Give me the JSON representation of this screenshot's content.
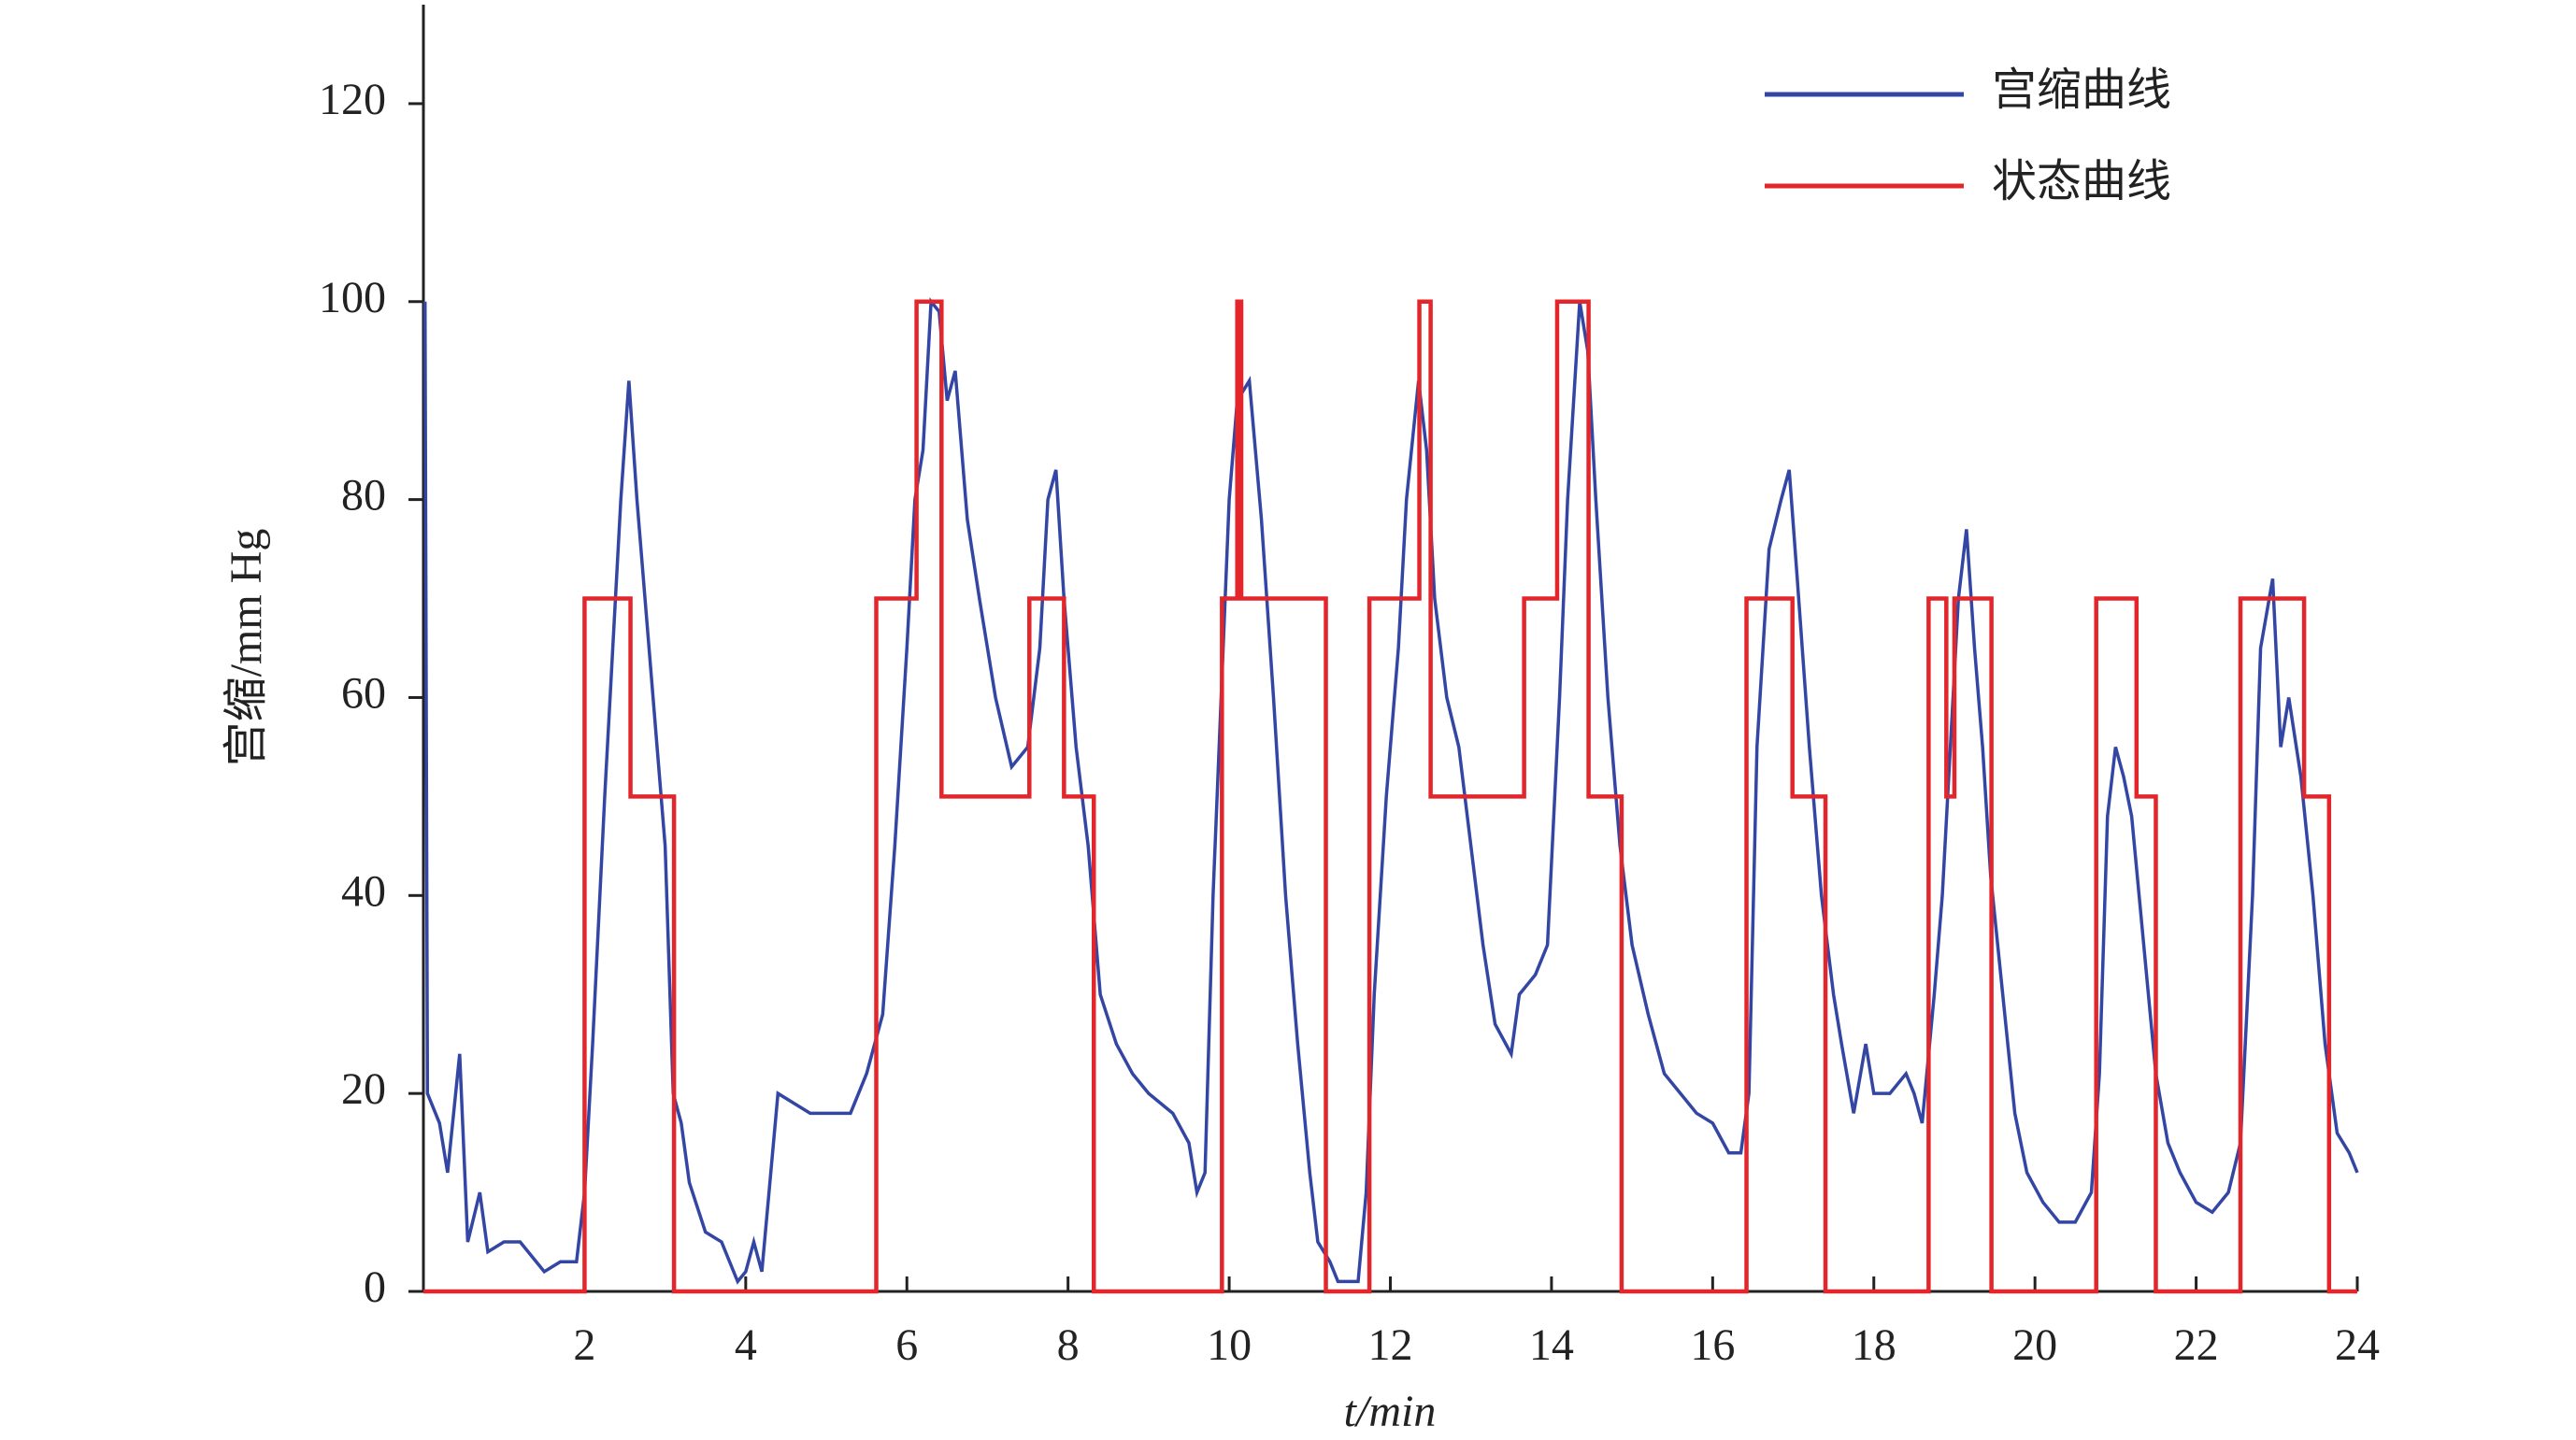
{
  "chart_data": {
    "type": "line",
    "xlabel": "t/min",
    "ylabel": "宫缩/mm Hg",
    "xlim": [
      0,
      24
    ],
    "ylim": [
      0,
      130
    ],
    "xticks": [
      2,
      4,
      6,
      8,
      10,
      12,
      14,
      16,
      18,
      20,
      22,
      24
    ],
    "yticks": [
      0,
      20,
      40,
      60,
      80,
      100,
      120
    ],
    "legend": "top-right",
    "series": [
      {
        "name": "宫缩曲线",
        "color": "#3346a4",
        "step": false,
        "x": [
          0.02,
          0.05,
          0.2,
          0.3,
          0.45,
          0.55,
          0.7,
          0.8,
          1.0,
          1.2,
          1.4,
          1.5,
          1.7,
          1.9,
          2.0,
          2.1,
          2.25,
          2.35,
          2.45,
          2.55,
          2.65,
          2.8,
          2.9,
          3.0,
          3.1,
          3.2,
          3.3,
          3.5,
          3.7,
          3.8,
          3.9,
          4.0,
          4.1,
          4.2,
          4.4,
          4.6,
          4.8,
          5.0,
          5.3,
          5.5,
          5.7,
          5.85,
          6.0,
          6.1,
          6.2,
          6.3,
          6.4,
          6.5,
          6.6,
          6.75,
          6.9,
          7.1,
          7.3,
          7.5,
          7.65,
          7.75,
          7.85,
          7.95,
          8.1,
          8.25,
          8.4,
          8.6,
          8.8,
          9.0,
          9.3,
          9.5,
          9.6,
          9.7,
          9.8,
          9.9,
          10.0,
          10.1,
          10.25,
          10.4,
          10.55,
          10.7,
          10.85,
          11.0,
          11.1,
          11.25,
          11.35,
          11.6,
          11.7,
          11.8,
          11.95,
          12.1,
          12.2,
          12.35,
          12.45,
          12.55,
          12.7,
          12.85,
          13.0,
          13.15,
          13.3,
          13.5,
          13.6,
          13.8,
          13.95,
          14.1,
          14.2,
          14.35,
          14.45,
          14.55,
          14.7,
          14.85,
          15.0,
          15.2,
          15.4,
          15.6,
          15.8,
          16.0,
          16.2,
          16.35,
          16.45,
          16.55,
          16.7,
          16.85,
          16.95,
          17.05,
          17.2,
          17.35,
          17.5,
          17.6,
          17.75,
          17.9,
          18.0,
          18.2,
          18.4,
          18.5,
          18.6,
          18.75,
          18.85,
          18.95,
          19.05,
          19.15,
          19.25,
          19.35,
          19.45,
          19.6,
          19.75,
          19.9,
          20.1,
          20.3,
          20.5,
          20.7,
          20.8,
          20.9,
          21.0,
          21.1,
          21.2,
          21.35,
          21.5,
          21.65,
          21.8,
          22.0,
          22.2,
          22.4,
          22.55,
          22.7,
          22.8,
          22.95,
          23.05,
          23.15,
          23.3,
          23.45,
          23.6,
          23.75,
          23.9,
          24.0
        ],
        "values": [
          100,
          20,
          17,
          12,
          24,
          5,
          10,
          4,
          5,
          5,
          3,
          2,
          3,
          3,
          10,
          25,
          50,
          65,
          80,
          92,
          80,
          65,
          55,
          45,
          20,
          17,
          11,
          6,
          5,
          3,
          1,
          2,
          5,
          2,
          20,
          19,
          18,
          18,
          18,
          22,
          28,
          45,
          65,
          80,
          85,
          100,
          99,
          90,
          93,
          78,
          70,
          60,
          53,
          55,
          65,
          80,
          83,
          70,
          55,
          45,
          30,
          25,
          22,
          20,
          18,
          15,
          10,
          12,
          40,
          60,
          80,
          90,
          92,
          78,
          60,
          40,
          25,
          12,
          5,
          3,
          1,
          1,
          10,
          30,
          50,
          65,
          80,
          92,
          85,
          70,
          60,
          55,
          45,
          35,
          27,
          24,
          30,
          32,
          35,
          60,
          80,
          100,
          95,
          80,
          60,
          45,
          35,
          28,
          22,
          20,
          18,
          17,
          14,
          14,
          20,
          55,
          75,
          80,
          83,
          72,
          55,
          40,
          30,
          25,
          18,
          25,
          20,
          20,
          22,
          20,
          17,
          30,
          40,
          55,
          70,
          77,
          65,
          55,
          42,
          30,
          18,
          12,
          9,
          7,
          7,
          10,
          22,
          48,
          55,
          52,
          48,
          35,
          22,
          15,
          12,
          9,
          8,
          10,
          15,
          40,
          65,
          72,
          55,
          60,
          52,
          40,
          25,
          16,
          14,
          12
        ]
      },
      {
        "name": "状态曲线",
        "color": "#e3262b",
        "step": true,
        "x": [
          0,
          2.0,
          2.57,
          3.11,
          5.62,
          6.12,
          6.43,
          7.52,
          7.95,
          8.32,
          9.91,
          10.1,
          10.15,
          11.2,
          11.74,
          12.36,
          12.5,
          13.66,
          14.07,
          14.46,
          14.87,
          16.42,
          16.99,
          17.4,
          18.68,
          18.9,
          19.0,
          19.46,
          20.76,
          21.26,
          21.5,
          22.55,
          23.34,
          23.65,
          24
        ],
        "values": [
          0,
          70,
          50,
          0,
          70,
          100,
          50,
          70,
          50,
          0,
          70,
          100,
          70,
          0,
          70,
          100,
          50,
          70,
          100,
          50,
          0,
          70,
          50,
          0,
          70,
          50,
          70,
          0,
          70,
          50,
          0,
          70,
          50,
          0,
          0
        ]
      }
    ]
  }
}
